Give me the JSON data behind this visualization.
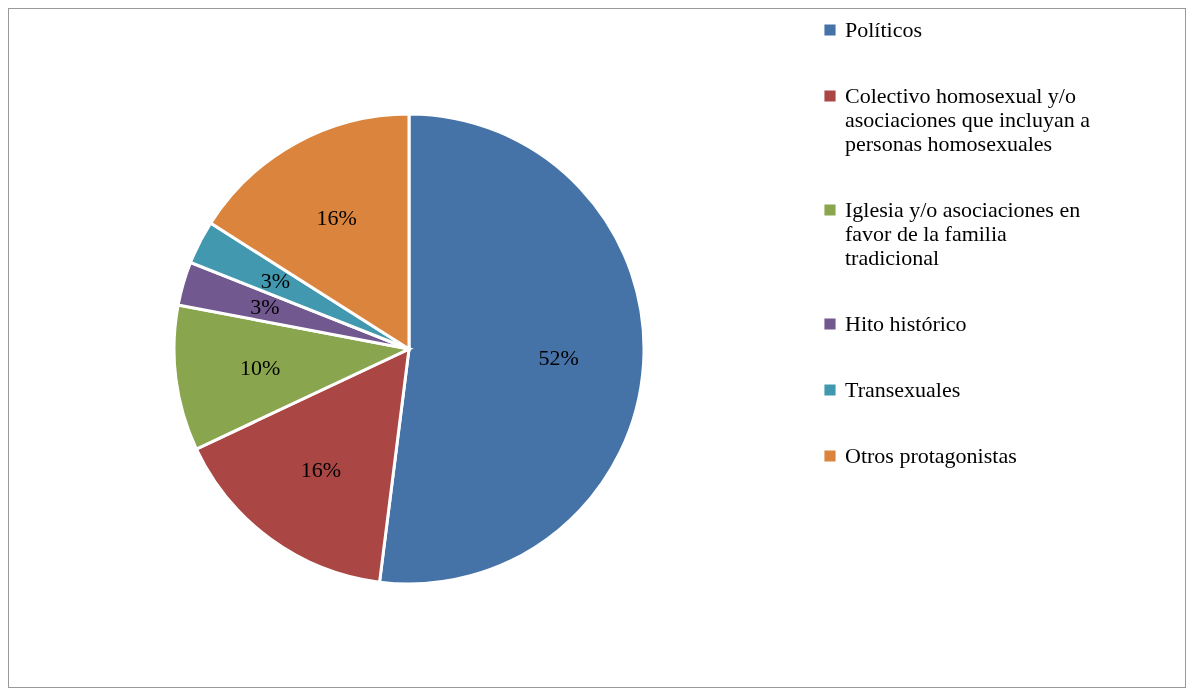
{
  "chart_data": {
    "type": "pie",
    "categories": [
      "Políticos",
      "Colectivo homosexual y/o asociaciones que incluyan a personas homosexuales",
      "Iglesia y/o asociaciones en favor de la familia tradicional",
      "Hito histórico",
      "Transexuales",
      "Otros protagonistas"
    ],
    "values": [
      52,
      16,
      10,
      3,
      3,
      16
    ],
    "colors": [
      "#4572a7",
      "#aa4643",
      "#89a54e",
      "#71588f",
      "#4198af",
      "#db843d"
    ],
    "value_labels": [
      "52%",
      "16%",
      "10%",
      "3%",
      "3%",
      "16%"
    ],
    "legend": "right"
  }
}
